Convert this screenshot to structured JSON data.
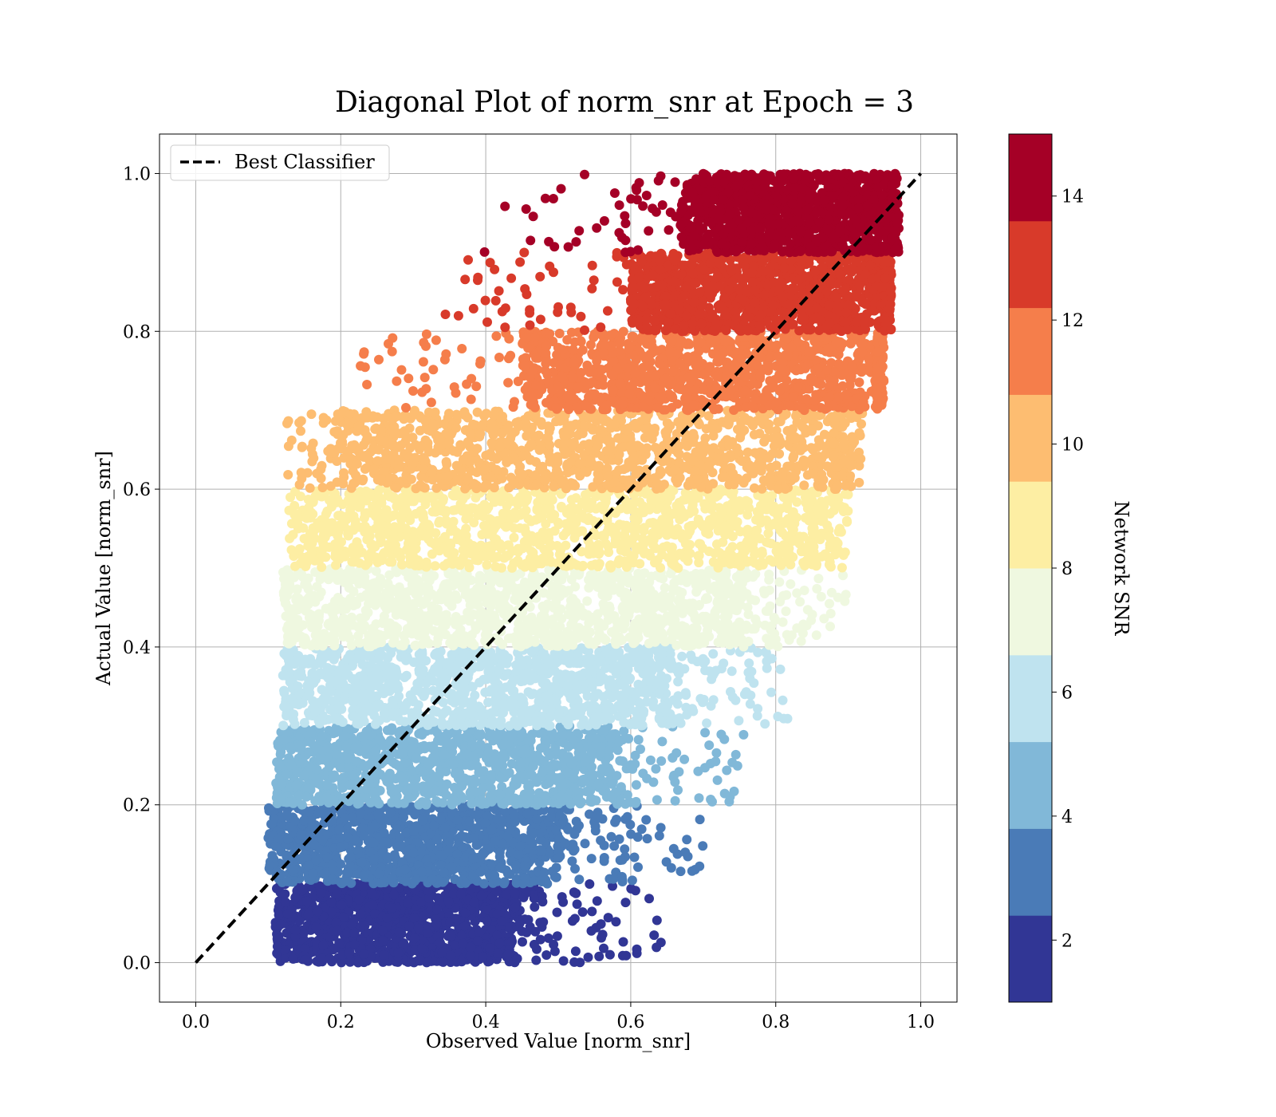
{
  "chart_data": {
    "type": "scatter",
    "title": "Diagonal Plot of norm_snr at Epoch = 3",
    "xlabel": "Observed Value [norm_snr]",
    "ylabel": "Actual Value [norm_snr]",
    "xlim": [
      -0.05,
      1.05
    ],
    "ylim": [
      -0.05,
      1.05
    ],
    "x_ticks": [
      0.0,
      0.2,
      0.4,
      0.6,
      0.8,
      1.0
    ],
    "x_tick_labels": [
      "0.0",
      "0.2",
      "0.4",
      "0.6",
      "0.8",
      "1.0"
    ],
    "y_ticks": [
      0.0,
      0.2,
      0.4,
      0.6,
      0.8,
      1.0
    ],
    "y_tick_labels": [
      "0.0",
      "0.2",
      "0.4",
      "0.6",
      "0.8",
      "1.0"
    ],
    "grid": true,
    "legend": {
      "position": "upper-left",
      "entries": [
        "Best Classifier"
      ]
    },
    "reference_line": {
      "name": "Best Classifier",
      "x": [
        0.0,
        1.0
      ],
      "y": [
        0.0,
        1.0
      ],
      "style": "dashed",
      "color": "#000000"
    },
    "colorbar": {
      "label": "Network SNR",
      "range": [
        1,
        15
      ],
      "ticks": [
        2,
        4,
        6,
        8,
        10,
        12,
        14
      ],
      "tick_labels": [
        "2",
        "4",
        "6",
        "8",
        "10",
        "12",
        "14"
      ],
      "colors": [
        "#313695",
        "#4a7bb7",
        "#81b8d8",
        "#bfe3ef",
        "#eff8e0",
        "#fdeea3",
        "#fdbd71",
        "#f57e4b",
        "#d83a2a",
        "#a50026"
      ]
    },
    "bands": [
      {
        "y_range": [
          0.0,
          0.1
        ],
        "dense_x": [
          0.11,
          0.44
        ],
        "sparse_x_max": 0.65,
        "color": "#313695"
      },
      {
        "y_range": [
          0.1,
          0.2
        ],
        "dense_x": [
          0.1,
          0.5
        ],
        "sparse_x_max": 0.7,
        "color": "#4a7bb7"
      },
      {
        "y_range": [
          0.2,
          0.3
        ],
        "dense_x": [
          0.11,
          0.57
        ],
        "sparse_x_max": 0.76,
        "color": "#81b8d8"
      },
      {
        "y_range": [
          0.3,
          0.4
        ],
        "dense_x": [
          0.12,
          0.65
        ],
        "sparse_x_max": 0.82,
        "color": "#bfe3ef"
      },
      {
        "y_range": [
          0.4,
          0.5
        ],
        "dense_x": [
          0.13,
          0.75
        ],
        "sparse_x_max": 0.9,
        "color": "#eff8e0"
      },
      {
        "y_range": [
          0.5,
          0.6
        ],
        "dense_x": [
          0.16,
          0.85
        ],
        "sparse_x_max": 0.9,
        "color": "#fdeea3"
      },
      {
        "y_range": [
          0.6,
          0.7
        ],
        "dense_x": [
          0.2,
          0.88
        ],
        "sparse_x_max": 0.92,
        "color": "#fdbd71"
      },
      {
        "y_range": [
          0.7,
          0.8
        ],
        "dense_x": [
          0.45,
          0.94
        ],
        "sparse_x_max": 0.95,
        "color": "#f57e4b"
      },
      {
        "y_range": [
          0.8,
          0.9
        ],
        "dense_x": [
          0.6,
          0.95
        ],
        "sparse_x_max": 0.96,
        "color": "#d83a2a"
      },
      {
        "y_range": [
          0.9,
          1.0
        ],
        "dense_x": [
          0.67,
          0.96
        ],
        "sparse_x_max": 0.97,
        "color": "#a50026"
      }
    ]
  }
}
